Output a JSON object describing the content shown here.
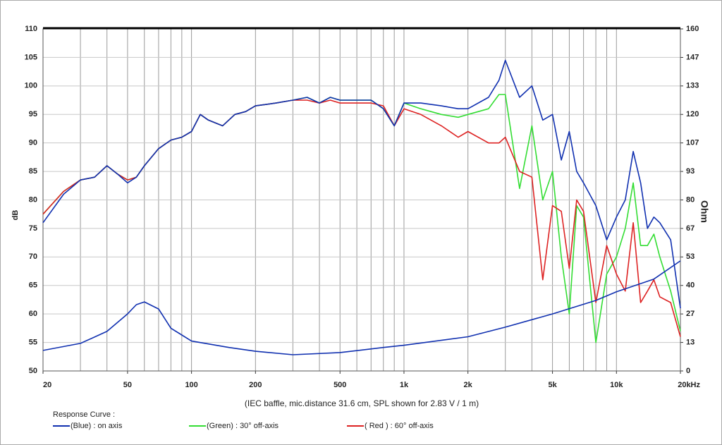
{
  "chart_data": {
    "type": "line",
    "ylabel": "dB",
    "y2label": "Ohm",
    "caption": "(IEC baffle, mic.distance 31.6 cm, SPL shown for 2.83 V / 1 m)",
    "legend_title": "Response Curve :",
    "log_x": true,
    "grid": true,
    "xlim": [
      20,
      20000
    ],
    "xticks": [
      20,
      50,
      100,
      200,
      500,
      {
        "value": 1000,
        "label": "1k"
      },
      {
        "value": 2000,
        "label": "2k"
      },
      {
        "value": 5000,
        "label": "5k"
      },
      {
        "value": 10000,
        "label": "10k"
      },
      {
        "value": 20000,
        "label": "20kHz"
      }
    ],
    "xgrid": [
      20,
      30,
      40,
      50,
      60,
      70,
      80,
      90,
      100,
      200,
      300,
      400,
      500,
      600,
      700,
      800,
      900,
      1000,
      2000,
      3000,
      4000,
      5000,
      6000,
      7000,
      8000,
      9000,
      10000,
      20000
    ],
    "ylim": [
      50,
      110
    ],
    "yticks": [
      50,
      55,
      60,
      65,
      70,
      75,
      80,
      85,
      90,
      95,
      100,
      105,
      110
    ],
    "y2lim": [
      0,
      160
    ],
    "y2ticks": [
      0,
      {
        "value": 13.333,
        "label": "13"
      },
      {
        "value": 26.667,
        "label": "27"
      },
      40,
      {
        "value": 53.333,
        "label": "53"
      },
      {
        "value": 66.667,
        "label": "67"
      },
      80,
      {
        "value": 93.333,
        "label": "93"
      },
      {
        "value": 106.667,
        "label": "107"
      },
      120,
      {
        "value": 133.333,
        "label": "133"
      },
      {
        "value": 146.667,
        "label": "147"
      },
      160
    ],
    "x": [
      20,
      25,
      30,
      35,
      40,
      45,
      50,
      55,
      60,
      70,
      80,
      90,
      100,
      110,
      120,
      140,
      160,
      180,
      200,
      250,
      300,
      350,
      400,
      450,
      500,
      600,
      700,
      800,
      900,
      1000,
      1200,
      1500,
      1800,
      2000,
      2500,
      2800,
      3000,
      3500,
      4000,
      4500,
      5000,
      5500,
      6000,
      6500,
      7000,
      8000,
      9000,
      10000,
      11000,
      12000,
      13000,
      14000,
      15000,
      16000,
      18000,
      20000
    ],
    "series": [
      {
        "name": "(Green) : 30° off-axis",
        "color": "#33dd33",
        "values": [
          77.5,
          81.5,
          83.5,
          84,
          86,
          84.5,
          83.5,
          84,
          86,
          89,
          90.5,
          91,
          92,
          95,
          94,
          93,
          95,
          95.5,
          96.5,
          97,
          97.5,
          98,
          97,
          98,
          97.5,
          97.5,
          97.5,
          96,
          93,
          97,
          96,
          95,
          94.5,
          95,
          96,
          98.5,
          98.5,
          82,
          93,
          80,
          85,
          70,
          60,
          79,
          77,
          55,
          67,
          70,
          75,
          83,
          72,
          72,
          74,
          70,
          64,
          57
        ]
      },
      {
        "name": "( Red ) : 60° off-axis",
        "color": "#dd2222",
        "values": [
          77.5,
          81.5,
          83.5,
          84,
          86,
          84.5,
          83.5,
          84,
          86,
          89,
          90.5,
          91,
          92,
          95,
          94,
          93,
          95,
          95.5,
          96.5,
          97,
          97.5,
          97.5,
          97,
          97.5,
          97,
          97,
          97,
          96.5,
          93,
          96,
          95,
          93,
          91,
          92,
          90,
          90,
          91,
          85,
          84,
          66,
          79,
          78,
          68,
          80,
          78,
          62,
          72,
          67,
          64,
          76,
          62,
          64,
          66,
          63,
          62,
          56
        ]
      },
      {
        "name": "(Blue)  : on axis",
        "color": "#1030b0",
        "values": [
          76,
          81,
          83.5,
          84,
          86,
          84.5,
          83,
          84,
          86,
          89,
          90.5,
          91,
          92,
          95,
          94,
          93,
          95,
          95.5,
          96.5,
          97,
          97.5,
          98,
          97,
          98,
          97.5,
          97.5,
          97.5,
          96,
          93,
          97,
          97,
          96.5,
          96,
          96,
          98,
          101,
          104.5,
          98,
          100,
          94,
          95,
          87,
          92,
          85,
          83,
          79,
          73,
          77,
          80,
          88.5,
          83,
          75,
          77,
          76,
          73,
          61
        ]
      }
    ],
    "impedance": {
      "axis": "y2",
      "color": "#1030b0",
      "x": [
        20,
        30,
        40,
        50,
        55,
        60,
        70,
        80,
        100,
        150,
        200,
        300,
        500,
        800,
        1000,
        2000,
        3000,
        5000,
        8000,
        10000,
        15000,
        20000
      ],
      "values": [
        9.6,
        12.9,
        18.5,
        26.7,
        31,
        32.3,
        29,
        20,
        14,
        11,
        9.2,
        7.6,
        8.6,
        11,
        12,
        16,
        20.5,
        26.7,
        33,
        37,
        43,
        51.5
      ]
    }
  }
}
